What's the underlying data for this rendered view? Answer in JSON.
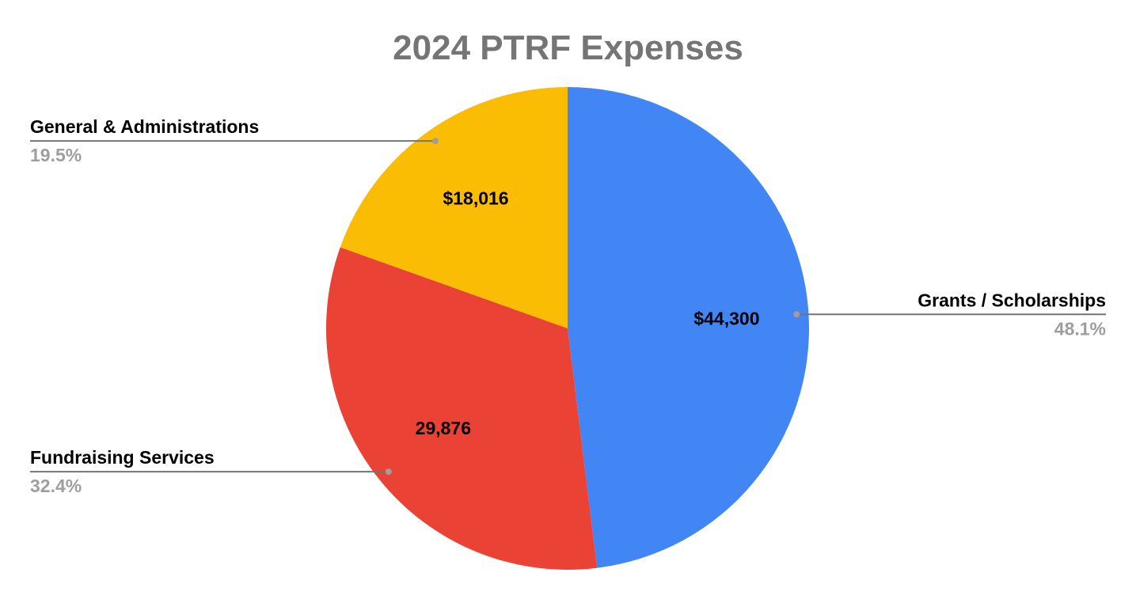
{
  "chart_data": {
    "type": "pie",
    "title": "2024 PTRF Expenses",
    "start_angle_deg": 0,
    "direction": "clockwise",
    "slices": [
      {
        "name": "Grants / Scholarships",
        "value": 44300,
        "value_label": "$44,300",
        "percent_label": "48.1%",
        "color": "#4285F4"
      },
      {
        "name": "Fundraising Services",
        "value": 29876,
        "value_label": "29,876",
        "percent_label": "32.4%",
        "color": "#EA4335"
      },
      {
        "name": "General & Administrations",
        "value": 18016,
        "value_label": "$18,016",
        "percent_label": "19.5%",
        "color": "#FBBC04"
      }
    ],
    "callout_line_color": "#757575",
    "callout_dot_color": "#9e9e9e"
  }
}
